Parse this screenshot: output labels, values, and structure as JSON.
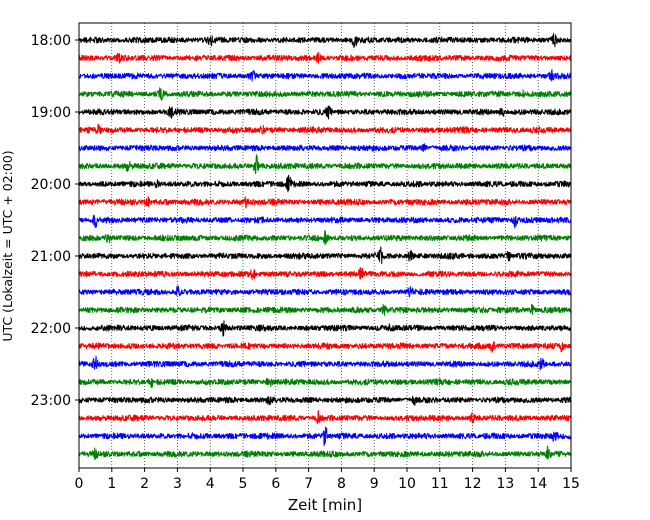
{
  "chart_data": {
    "type": "line",
    "title": "",
    "xlabel": "Zeit  [min]",
    "ylabel": "UTC (Lokalzeit = UTC + 02:00)",
    "xlim": [
      0,
      15
    ],
    "x_ticks": [
      0,
      1,
      2,
      3,
      4,
      5,
      6,
      7,
      8,
      9,
      10,
      11,
      12,
      13,
      14,
      15
    ],
    "x_tick_labels": [
      "0",
      "1",
      "2",
      "3",
      "4",
      "5",
      "6",
      "7",
      "8",
      "9",
      "10",
      "11",
      "12",
      "13",
      "14",
      "15"
    ],
    "y_tick_labels": [
      "18:00",
      "19:00",
      "20:00",
      "21:00",
      "22:00",
      "23:00"
    ],
    "row_interval_minutes": 15,
    "start_time": "18:00",
    "grid": "vertical dotted lines at each minute",
    "color_cycle": [
      "#000000",
      "#ff0000",
      "#0000ff",
      "#008000"
    ],
    "series": [
      {
        "row_time": "18:00",
        "color": "#000000",
        "bursts": [
          {
            "x": 4.0,
            "amp": 1.4
          },
          {
            "x": 8.4,
            "amp": 1.6
          },
          {
            "x": 14.5,
            "amp": 1.5
          }
        ]
      },
      {
        "row_time": "18:15",
        "color": "#ff0000",
        "bursts": [
          {
            "x": 7.3,
            "amp": 1.6
          },
          {
            "x": 1.2,
            "amp": 0.9
          }
        ]
      },
      {
        "row_time": "18:30",
        "color": "#0000ff",
        "bursts": [
          {
            "x": 5.3,
            "amp": 1.1
          },
          {
            "x": 14.4,
            "amp": 1.1
          }
        ]
      },
      {
        "row_time": "18:45",
        "color": "#008000",
        "bursts": [
          {
            "x": 2.5,
            "amp": 1.6
          },
          {
            "x": 13.5,
            "amp": 1.0
          }
        ]
      },
      {
        "row_time": "19:00",
        "color": "#000000",
        "bursts": [
          {
            "x": 2.8,
            "amp": 1.0
          },
          {
            "x": 7.6,
            "amp": 1.3
          },
          {
            "x": 12.9,
            "amp": 1.2
          }
        ]
      },
      {
        "row_time": "19:15",
        "color": "#ff0000",
        "bursts": [
          {
            "x": 0.6,
            "amp": 1.2
          },
          {
            "x": 5.6,
            "amp": 1.0
          }
        ]
      },
      {
        "row_time": "19:30",
        "color": "#0000ff",
        "bursts": [
          {
            "x": 10.5,
            "amp": 0.9
          }
        ]
      },
      {
        "row_time": "19:45",
        "color": "#008000",
        "bursts": [
          {
            "x": 5.4,
            "amp": 2.8
          },
          {
            "x": 1.5,
            "amp": 0.9
          }
        ]
      },
      {
        "row_time": "20:00",
        "color": "#000000",
        "bursts": [
          {
            "x": 6.4,
            "amp": 2.0
          },
          {
            "x": 2.4,
            "amp": 0.9
          }
        ]
      },
      {
        "row_time": "20:15",
        "color": "#ff0000",
        "bursts": [
          {
            "x": 2.1,
            "amp": 1.1
          },
          {
            "x": 5.1,
            "amp": 1.0
          }
        ]
      },
      {
        "row_time": "20:30",
        "color": "#0000ff",
        "bursts": [
          {
            "x": 0.5,
            "amp": 1.5
          },
          {
            "x": 13.3,
            "amp": 1.6
          }
        ]
      },
      {
        "row_time": "20:45",
        "color": "#008000",
        "bursts": [
          {
            "x": 0.9,
            "amp": 1.1
          },
          {
            "x": 7.5,
            "amp": 1.7
          }
        ]
      },
      {
        "row_time": "21:00",
        "color": "#000000",
        "bursts": [
          {
            "x": 9.2,
            "amp": 1.6
          },
          {
            "x": 10.1,
            "amp": 1.0
          },
          {
            "x": 13.1,
            "amp": 1.0
          }
        ]
      },
      {
        "row_time": "21:15",
        "color": "#ff0000",
        "bursts": [
          {
            "x": 5.3,
            "amp": 1.4
          },
          {
            "x": 8.6,
            "amp": 1.2
          }
        ]
      },
      {
        "row_time": "21:30",
        "color": "#0000ff",
        "bursts": [
          {
            "x": 3.0,
            "amp": 1.3
          },
          {
            "x": 10.1,
            "amp": 1.1
          }
        ]
      },
      {
        "row_time": "21:45",
        "color": "#008000",
        "bursts": [
          {
            "x": 9.3,
            "amp": 1.2
          },
          {
            "x": 13.8,
            "amp": 1.0
          }
        ]
      },
      {
        "row_time": "22:00",
        "color": "#000000",
        "bursts": [
          {
            "x": 4.4,
            "amp": 1.9
          },
          {
            "x": 9.5,
            "amp": 1.0
          }
        ]
      },
      {
        "row_time": "22:15",
        "color": "#ff0000",
        "bursts": [
          {
            "x": 12.6,
            "amp": 1.3
          },
          {
            "x": 14.7,
            "amp": 1.0
          }
        ]
      },
      {
        "row_time": "22:30",
        "color": "#0000ff",
        "bursts": [
          {
            "x": 0.5,
            "amp": 2.2
          },
          {
            "x": 14.1,
            "amp": 1.3
          }
        ]
      },
      {
        "row_time": "22:45",
        "color": "#008000",
        "bursts": [
          {
            "x": 5.8,
            "amp": 1.5
          },
          {
            "x": 2.2,
            "amp": 0.9
          }
        ]
      },
      {
        "row_time": "23:00",
        "color": "#000000",
        "bursts": [
          {
            "x": 5.8,
            "amp": 1.2
          },
          {
            "x": 10.2,
            "amp": 1.0
          }
        ]
      },
      {
        "row_time": "23:15",
        "color": "#ff0000",
        "bursts": [
          {
            "x": 7.3,
            "amp": 1.3
          },
          {
            "x": 12.0,
            "amp": 0.9
          }
        ]
      },
      {
        "row_time": "23:30",
        "color": "#0000ff",
        "bursts": [
          {
            "x": 7.5,
            "amp": 2.6
          },
          {
            "x": 14.5,
            "amp": 1.4
          }
        ]
      },
      {
        "row_time": "23:45",
        "color": "#008000",
        "bursts": [
          {
            "x": 14.3,
            "amp": 1.3
          },
          {
            "x": 0.5,
            "amp": 0.9
          }
        ]
      }
    ]
  }
}
